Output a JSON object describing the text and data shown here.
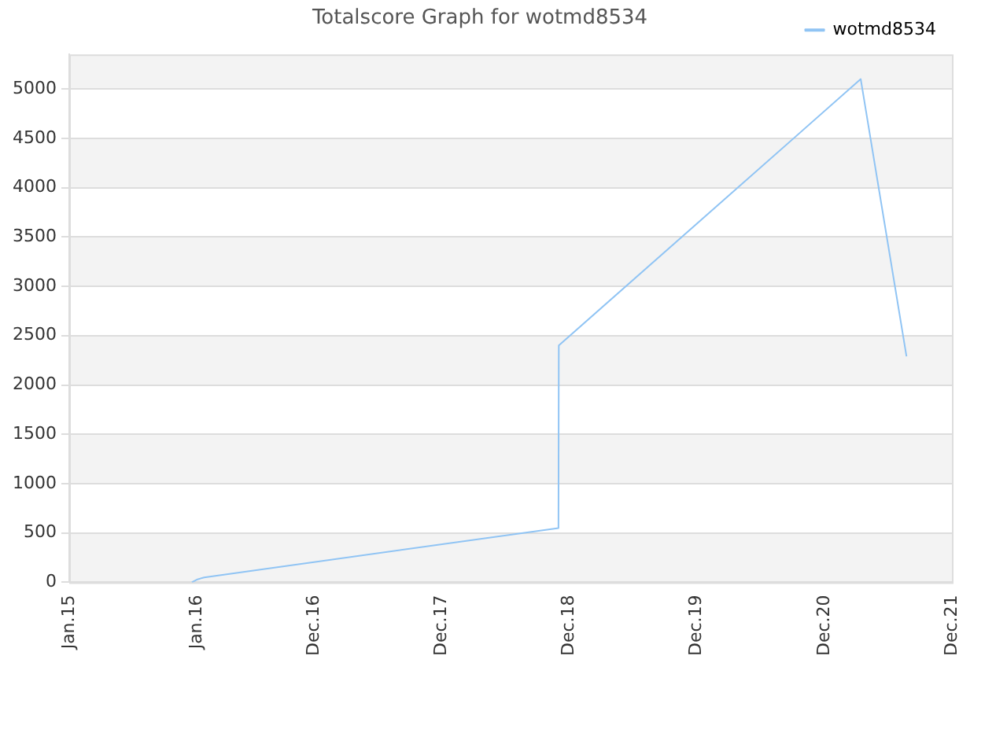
{
  "chart_data": {
    "type": "line",
    "title": "Totalscore Graph for wotmd8534",
    "x": [
      "2015-12-18",
      "2016-01-03",
      "2016-01-22",
      "2018-11-01",
      "2018-11-02",
      "2021-03-15",
      "2021-07-24"
    ],
    "series": [
      {
        "name": "wotmd8534",
        "color": "#90c4f4",
        "values": [
          0,
          30,
          50,
          550,
          2400,
          5100,
          2290
        ]
      }
    ],
    "xlim": [
      "2015-01-01",
      "2021-12-01"
    ],
    "xticks": [
      {
        "value": "2015-01-01",
        "label": "Jan.15"
      },
      {
        "value": "2016-01-01",
        "label": "Jan.16"
      },
      {
        "value": "2016-12-01",
        "label": "Dec.16"
      },
      {
        "value": "2017-12-01",
        "label": "Dec.17"
      },
      {
        "value": "2018-12-01",
        "label": "Dec.18"
      },
      {
        "value": "2019-12-01",
        "label": "Dec.19"
      },
      {
        "value": "2020-12-01",
        "label": "Dec.20"
      },
      {
        "value": "2021-12-01",
        "label": "Dec.21"
      }
    ],
    "ylim": [
      0,
      5350
    ],
    "yticks": [
      0,
      500,
      1000,
      1500,
      2000,
      2500,
      3000,
      3500,
      4000,
      4500,
      5000
    ],
    "grid": "y",
    "legend": "top right",
    "marker": "none",
    "line_style": "solid"
  }
}
